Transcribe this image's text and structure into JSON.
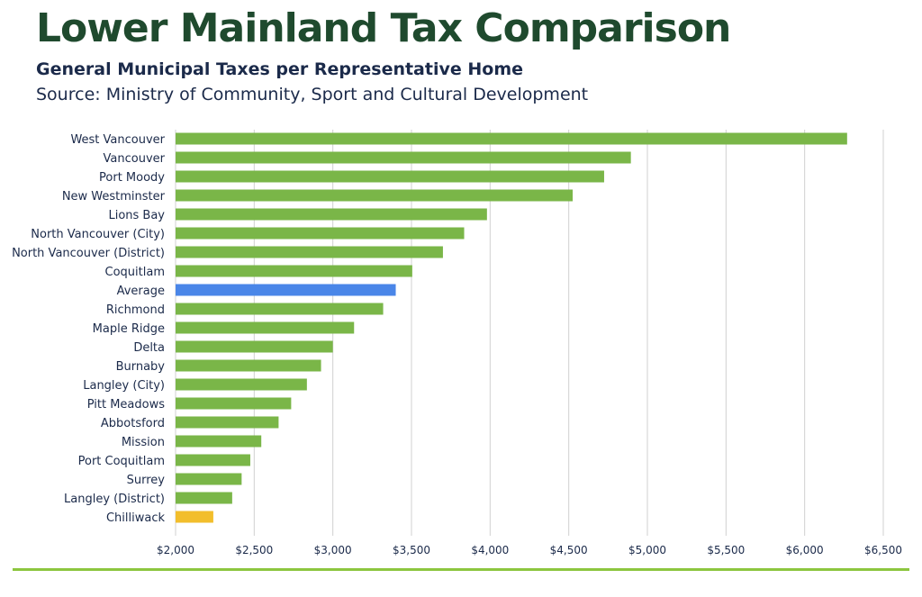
{
  "header": {
    "title": "Lower Mainland Tax Comparison",
    "subtitle": "General Municipal Taxes per Representative Home",
    "source": "Source: Ministry of Community, Sport and Cultural Development"
  },
  "colors": {
    "default_bar": "#7ab648",
    "average_bar": "#4a86e8",
    "chilliwack_bar": "#f2be2c",
    "grid": "#d0d0d0",
    "rule": "#8cc63f"
  },
  "chart_data": {
    "type": "bar",
    "orientation": "horizontal",
    "title": "Lower Mainland Tax Comparison",
    "subtitle": "General Municipal Taxes per Representative Home",
    "xlabel": "",
    "ylabel": "",
    "xlim": [
      2000,
      6500
    ],
    "x_ticks": [
      2000,
      2500,
      3000,
      3500,
      4000,
      4500,
      5000,
      5500,
      6000,
      6500
    ],
    "x_tick_labels": [
      "$2,000",
      "$2,500",
      "$3,000",
      "$3,500",
      "$4,000",
      "$4,500",
      "$5,000",
      "$5,500",
      "$6,000",
      "$6,500"
    ],
    "grid": true,
    "legend": "none",
    "categories": [
      "West Vancouver",
      "Vancouver",
      "Port Moody",
      "New Westminster",
      "Lions Bay",
      "North Vancouver (City)",
      "North Vancouver (District)",
      "Coquitlam",
      "Average",
      "Richmond",
      "Maple Ridge",
      "Delta",
      "Burnaby",
      "Langley (City)",
      "Pitt Meadows",
      "Abbotsford",
      "Mission",
      "Port Coquitlam",
      "Surrey",
      "Langley (District)",
      "Chilliwack"
    ],
    "values": [
      6270,
      4895,
      4725,
      4525,
      3980,
      3835,
      3700,
      3505,
      3400,
      3320,
      3135,
      3000,
      2925,
      2835,
      2735,
      2655,
      2545,
      2475,
      2420,
      2360,
      2240
    ],
    "highlights": {
      "Average": "average_bar",
      "Chilliwack": "chilliwack_bar"
    }
  }
}
